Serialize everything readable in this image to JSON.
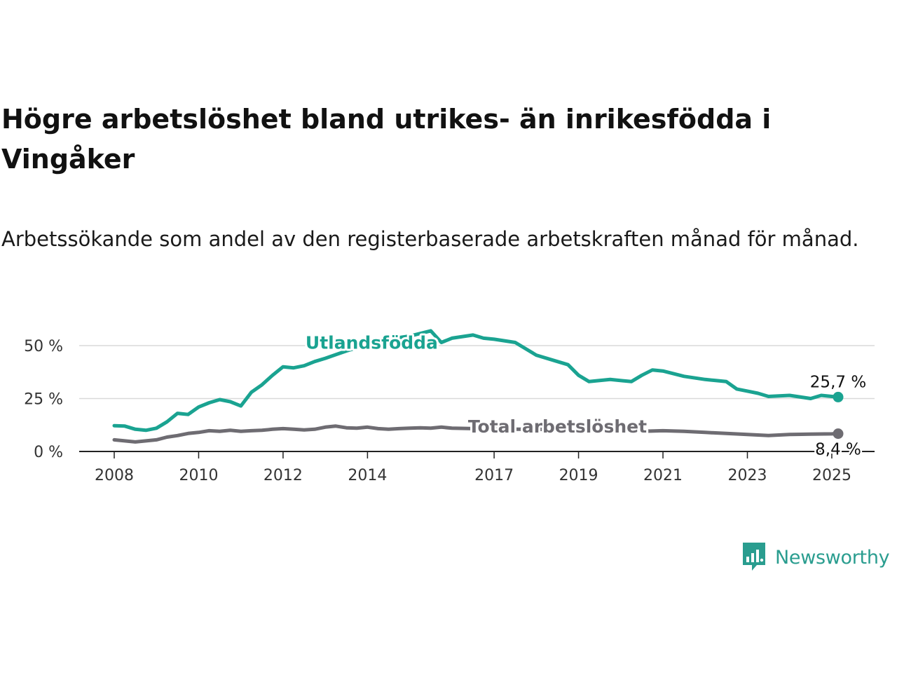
{
  "title": "Högre arbetslöshet bland utrikes- än inrikesfödda i Vingåker",
  "subtitle": "Arbetssökande som andel av den registerbaserade arbetskraften månad för månad.",
  "brand": {
    "name": "Newsworthy"
  },
  "colors": {
    "foreign_born": "#1aa391",
    "total": "#6e6c72",
    "grid": "#d9d9d9",
    "axis": "#222222"
  },
  "chart_data": {
    "type": "line",
    "title": "Högre arbetslöshet bland utrikes- än inrikesfödda i Vingåker",
    "subtitle": "Arbetssökande som andel av den registerbaserade arbetskraften månad för månad.",
    "xlabel": "",
    "ylabel": "",
    "xlim": [
      2008.0,
      2025.25
    ],
    "ylim": [
      0,
      60
    ],
    "grid": true,
    "x_ticks": [
      {
        "value": 2008,
        "label": "2008"
      },
      {
        "value": 2010,
        "label": "2010"
      },
      {
        "value": 2012,
        "label": "2012"
      },
      {
        "value": 2014,
        "label": "2014"
      },
      {
        "value": 2017,
        "label": "2017"
      },
      {
        "value": 2019,
        "label": "2019"
      },
      {
        "value": 2021,
        "label": "2021"
      },
      {
        "value": 2023,
        "label": "2023"
      },
      {
        "value": 2025,
        "label": "2025"
      }
    ],
    "y_ticks": [
      {
        "value": 0,
        "label": "0 %"
      },
      {
        "value": 25,
        "label": "25 %"
      },
      {
        "value": 50,
        "label": "50 %"
      }
    ],
    "series": [
      {
        "name": "Utlandsfödda",
        "color": "#1aa391",
        "end_label": "25,7 %",
        "points": [
          [
            2008.0,
            12.2
          ],
          [
            2008.25,
            12.0
          ],
          [
            2008.5,
            10.5
          ],
          [
            2008.75,
            10.0
          ],
          [
            2009.0,
            11.0
          ],
          [
            2009.25,
            14.0
          ],
          [
            2009.5,
            18.0
          ],
          [
            2009.75,
            17.5
          ],
          [
            2010.0,
            21.0
          ],
          [
            2010.25,
            23.0
          ],
          [
            2010.5,
            24.5
          ],
          [
            2010.75,
            23.5
          ],
          [
            2011.0,
            21.5
          ],
          [
            2011.25,
            28.0
          ],
          [
            2011.5,
            31.5
          ],
          [
            2011.75,
            36.0
          ],
          [
            2012.0,
            40.0
          ],
          [
            2012.25,
            39.5
          ],
          [
            2012.5,
            40.5
          ],
          [
            2012.75,
            42.5
          ],
          [
            2013.0,
            44.0
          ],
          [
            2013.5,
            47.5
          ],
          [
            2014.0,
            50.5
          ],
          [
            2014.5,
            53.0
          ],
          [
            2015.0,
            54.5
          ],
          [
            2015.5,
            57.0
          ],
          [
            2015.75,
            51.5
          ],
          [
            2016.0,
            53.5
          ],
          [
            2016.5,
            55.0
          ],
          [
            2016.75,
            53.5
          ],
          [
            2017.0,
            53.0
          ],
          [
            2017.5,
            51.5
          ],
          [
            2018.0,
            45.5
          ],
          [
            2018.5,
            42.5
          ],
          [
            2018.75,
            41.0
          ],
          [
            2019.0,
            36.0
          ],
          [
            2019.25,
            33.0
          ],
          [
            2019.75,
            34.0
          ],
          [
            2020.25,
            33.0
          ],
          [
            2020.5,
            36.0
          ],
          [
            2020.75,
            38.5
          ],
          [
            2021.0,
            38.0
          ],
          [
            2021.5,
            35.5
          ],
          [
            2022.0,
            34.0
          ],
          [
            2022.25,
            33.5
          ],
          [
            2022.5,
            33.0
          ],
          [
            2022.75,
            29.5
          ],
          [
            2023.0,
            28.5
          ],
          [
            2023.25,
            27.5
          ],
          [
            2023.5,
            26.0
          ],
          [
            2024.0,
            26.5
          ],
          [
            2024.5,
            25.0
          ],
          [
            2024.75,
            26.5
          ],
          [
            2025.0,
            26.0
          ],
          [
            2025.15,
            25.7
          ]
        ]
      },
      {
        "name": "Total arbetslöshet",
        "color": "#6e6c72",
        "end_label": "8,4 %",
        "points": [
          [
            2008.0,
            5.5
          ],
          [
            2008.25,
            5.0
          ],
          [
            2008.5,
            4.5
          ],
          [
            2008.75,
            5.0
          ],
          [
            2009.0,
            5.5
          ],
          [
            2009.25,
            6.8
          ],
          [
            2009.5,
            7.5
          ],
          [
            2009.75,
            8.5
          ],
          [
            2010.0,
            9.0
          ],
          [
            2010.25,
            9.8
          ],
          [
            2010.5,
            9.5
          ],
          [
            2010.75,
            10.0
          ],
          [
            2011.0,
            9.5
          ],
          [
            2011.25,
            9.8
          ],
          [
            2011.5,
            10.0
          ],
          [
            2011.75,
            10.5
          ],
          [
            2012.0,
            10.8
          ],
          [
            2012.25,
            10.5
          ],
          [
            2012.5,
            10.2
          ],
          [
            2012.75,
            10.5
          ],
          [
            2013.0,
            11.5
          ],
          [
            2013.25,
            12.0
          ],
          [
            2013.5,
            11.2
          ],
          [
            2013.75,
            11.0
          ],
          [
            2014.0,
            11.5
          ],
          [
            2014.25,
            10.8
          ],
          [
            2014.5,
            10.5
          ],
          [
            2014.75,
            10.8
          ],
          [
            2015.0,
            11.0
          ],
          [
            2015.25,
            11.2
          ],
          [
            2015.5,
            11.0
          ],
          [
            2015.75,
            11.5
          ],
          [
            2016.0,
            11.0
          ],
          [
            2016.5,
            10.8
          ],
          [
            2017.0,
            11.0
          ],
          [
            2017.5,
            10.5
          ],
          [
            2018.0,
            10.5
          ],
          [
            2018.5,
            10.2
          ],
          [
            2019.0,
            10.0
          ],
          [
            2019.5,
            9.8
          ],
          [
            2020.0,
            9.8
          ],
          [
            2020.5,
            9.5
          ],
          [
            2021.0,
            9.8
          ],
          [
            2021.5,
            9.5
          ],
          [
            2022.0,
            9.0
          ],
          [
            2022.5,
            8.5
          ],
          [
            2023.0,
            8.0
          ],
          [
            2023.5,
            7.5
          ],
          [
            2024.0,
            8.0
          ],
          [
            2024.5,
            8.2
          ],
          [
            2025.0,
            8.3
          ],
          [
            2025.15,
            8.4
          ]
        ]
      }
    ],
    "series_labels": [
      {
        "series": "Utlandsfödda",
        "text": "Utlandsfödda",
        "anchor_x": 2014.1,
        "anchor_y": 48.5
      },
      {
        "series": "Total arbetslöshet",
        "text": "Total arbetslöshet",
        "anchor_x": 2018.5,
        "anchor_y": 9.0
      }
    ]
  }
}
